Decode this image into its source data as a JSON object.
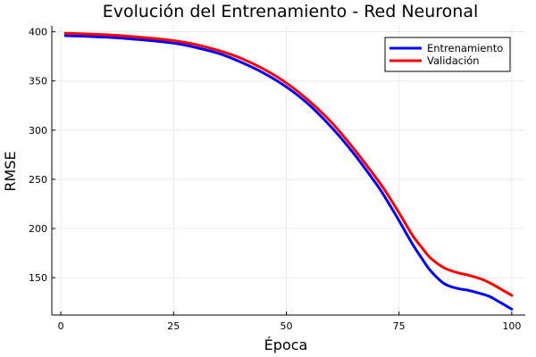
{
  "chart_data": {
    "type": "line",
    "title": "Evolución del Entrenamiento - Red Neuronal",
    "xlabel": "Época",
    "ylabel": "RMSE",
    "xlim": [
      -2,
      103
    ],
    "ylim": [
      112,
      406
    ],
    "xticks": [
      0,
      25,
      50,
      75,
      100
    ],
    "yticks": [
      150,
      200,
      250,
      300,
      350,
      400
    ],
    "grid": true,
    "legend_position": "top-right",
    "x": [
      1,
      5,
      10,
      15,
      20,
      25,
      30,
      35,
      40,
      45,
      50,
      55,
      60,
      65,
      70,
      72,
      75,
      78,
      80,
      82,
      85,
      88,
      90,
      93,
      95,
      97,
      100
    ],
    "series": [
      {
        "name": "Entrenamiento",
        "color": "#0000ff",
        "values": [
          396,
          395.5,
          394.5,
          393,
          391,
          388.5,
          384,
          378,
          369,
          358,
          344,
          326,
          303,
          276,
          245,
          231,
          208,
          184,
          170,
          157,
          144,
          139,
          137.5,
          134,
          131,
          126,
          118
        ]
      },
      {
        "name": "Validación",
        "color": "#ff0000",
        "values": [
          398.5,
          398,
          397,
          395.5,
          393.5,
          391,
          387,
          381,
          373,
          362,
          348,
          330,
          308,
          281,
          251,
          238,
          216,
          193,
          181,
          170,
          160,
          155,
          153,
          149,
          145,
          140,
          132
        ]
      }
    ]
  }
}
